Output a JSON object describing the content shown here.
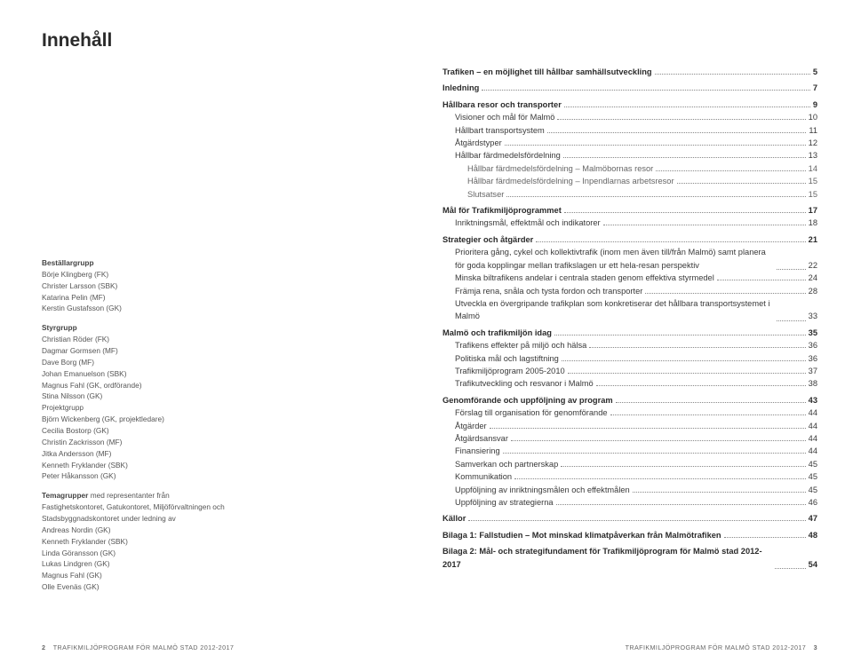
{
  "title": "Innehåll",
  "leftColumn": {
    "groups": [
      {
        "title": "Beställargrupp",
        "members": [
          "Börje Klingberg (FK)",
          "Christer Larsson (SBK)",
          "Katarina Pelin (MF)",
          "Kerstin Gustafsson (GK)"
        ]
      },
      {
        "title": "Styrgrupp",
        "members": [
          "Christian Röder (FK)",
          "Dagmar Gormsen (MF)",
          "Dave Borg (MF)",
          "Johan Emanuelson (SBK)",
          "Magnus Fahl (GK, ordförande)",
          "Stina Nilsson (GK)",
          "Projektgrupp",
          "Björn Wickenberg (GK, projektledare)",
          "Cecilia Bostorp (GK)",
          "Christin Zackrisson (MF)",
          "Jitka Andersson (MF)",
          "Kenneth Fryklander (SBK)",
          "Peter Håkansson (GK)"
        ]
      }
    ],
    "tema": {
      "intro": "Temagrupper med representanter från Fastighetskontoret, Gatukontoret, Miljöförvaltningen och Stadsbyggnadskontoret under ledning av",
      "members": [
        "Andreas Nordin (GK)",
        "Kenneth Fryklander (SBK)",
        "Linda Göransson (GK)",
        "Lukas Lindgren (GK)",
        "Magnus Fahl (GK)",
        "Olle Evenäs (GK)"
      ]
    }
  },
  "toc": [
    {
      "lvl": 0,
      "label": "Trafiken – en möjlighet till hållbar samhällsutveckling",
      "pg": "5"
    },
    {
      "lvl": 0,
      "label": "Inledning",
      "pg": "7"
    },
    {
      "lvl": 0,
      "label": "Hållbara resor och transporter",
      "pg": "9"
    },
    {
      "lvl": 1,
      "label": "Visioner och mål för Malmö",
      "pg": "10"
    },
    {
      "lvl": 1,
      "label": "Hållbart transportsystem",
      "pg": "11"
    },
    {
      "lvl": 1,
      "label": "Åtgärdstyper",
      "pg": "12"
    },
    {
      "lvl": 1,
      "label": "Hållbar färdmedelsfördelning",
      "pg": "13"
    },
    {
      "lvl": 2,
      "label": "Hållbar färdmedelsfördelning – Malmöbornas resor",
      "pg": "14"
    },
    {
      "lvl": 2,
      "label": "Hållbar färdmedelsfördelning – Inpendlarnas arbetsresor",
      "pg": "15"
    },
    {
      "lvl": 2,
      "label": "Slutsatser",
      "pg": "15"
    },
    {
      "lvl": 0,
      "label": "Mål för Trafikmiljöprogrammet",
      "pg": "17"
    },
    {
      "lvl": 1,
      "label": "Inriktningsmål, effektmål och indikatorer",
      "pg": "18"
    },
    {
      "lvl": 0,
      "label": "Strategier och åtgärder",
      "pg": "21"
    },
    {
      "lvl": 1,
      "label": "Prioritera gång, cykel och kollektivtrafik (inom men även till/från Malmö) samt planera för goda kopplingar mellan trafikslagen ur ett hela-resan perspektiv",
      "pg": "22"
    },
    {
      "lvl": 1,
      "label": "Minska biltrafikens andelar i centrala staden genom effektiva styrmedel",
      "pg": "24"
    },
    {
      "lvl": 1,
      "label": "Främja rena, snåla och tysta fordon och transporter",
      "pg": "28"
    },
    {
      "lvl": 1,
      "label": "Utveckla en övergripande trafikplan som konkretiserar det hållbara transportsystemet i Malmö",
      "pg": "33"
    },
    {
      "lvl": 0,
      "label": "Malmö och trafikmiljön idag",
      "pg": "35"
    },
    {
      "lvl": 1,
      "label": "Trafikens effekter på miljö och hälsa",
      "pg": "36"
    },
    {
      "lvl": 1,
      "label": "Politiska mål och lagstiftning",
      "pg": "36"
    },
    {
      "lvl": 1,
      "label": "Trafikmiljöprogram 2005-2010",
      "pg": "37"
    },
    {
      "lvl": 1,
      "label": "Trafikutveckling och resvanor i Malmö",
      "pg": "38"
    },
    {
      "lvl": 0,
      "label": "Genomförande och uppföljning av program",
      "pg": "43"
    },
    {
      "lvl": 1,
      "label": "Förslag till organisation för genomförande",
      "pg": "44"
    },
    {
      "lvl": 1,
      "label": "Åtgärder",
      "pg": "44"
    },
    {
      "lvl": 1,
      "label": "Åtgärdsansvar",
      "pg": "44"
    },
    {
      "lvl": 1,
      "label": "Finansiering",
      "pg": "44"
    },
    {
      "lvl": 1,
      "label": "Samverkan och partnerskap",
      "pg": "45"
    },
    {
      "lvl": 1,
      "label": "Kommunikation",
      "pg": "45"
    },
    {
      "lvl": 1,
      "label": "Uppföljning av inriktningsmålen och effektmålen",
      "pg": "45"
    },
    {
      "lvl": 1,
      "label": "Uppföljning av strategierna",
      "pg": "46"
    },
    {
      "lvl": 0,
      "label": "Källor",
      "pg": "47"
    },
    {
      "lvl": 0,
      "label": "Bilaga 1: Fallstudien – Mot minskad klimatpåverkan från Malmötrafiken",
      "pg": "48"
    },
    {
      "lvl": 0,
      "label": "Bilaga 2: Mål- och strategifundament för Trafikmiljöprogram för Malmö stad 2012-2017",
      "pg": "54"
    }
  ],
  "footer": {
    "leftPage": "2",
    "rightPage": "3",
    "text": "TRAFIKMILJÖPROGRAM FÖR MALMÖ STAD 2012-2017"
  }
}
